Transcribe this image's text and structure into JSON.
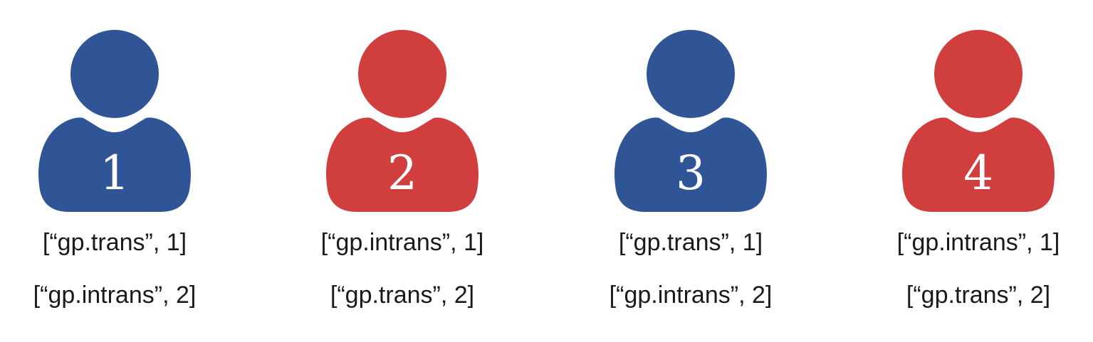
{
  "colors": {
    "blue": "#2f5597",
    "red": "#d13e3e",
    "text": "#1a1a1a"
  },
  "people": [
    {
      "number": "1",
      "color": "#2f5597",
      "icon": "user-icon",
      "lines": [
        "[“gp.trans”, 1]",
        "[“gp.intrans”, 2]"
      ]
    },
    {
      "number": "2",
      "color": "#d13e3e",
      "icon": "user-icon",
      "lines": [
        "[“gp.intrans”, 1]",
        "[“gp.trans”, 2]"
      ]
    },
    {
      "number": "3",
      "color": "#2f5597",
      "icon": "user-icon",
      "lines": [
        "[“gp.trans”, 1]",
        "[“gp.intrans”, 2]"
      ]
    },
    {
      "number": "4",
      "color": "#d13e3e",
      "icon": "user-icon",
      "lines": [
        "[“gp.intrans”, 1]",
        "[“gp.trans”, 2]"
      ]
    }
  ]
}
